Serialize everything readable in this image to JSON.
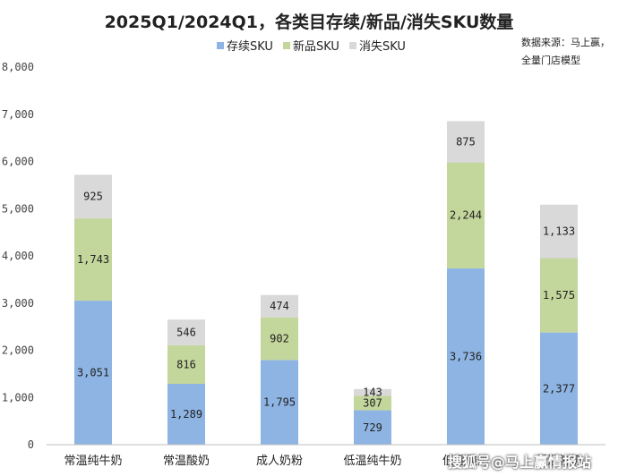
{
  "chart_data": {
    "type": "bar",
    "stacked": true,
    "title": "2025Q1/2024Q1，各类目存续/新品/消失SKU数量",
    "categories": [
      "常温纯牛奶",
      "常温酸奶",
      "成人奶粉",
      "低温纯牛奶",
      "低温酸奶",
      "低温鲜奶"
    ],
    "series": [
      {
        "name": "存续SKU",
        "color": "#8eb4e3",
        "values": [
          3051,
          1289,
          1795,
          729,
          3736,
          2377
        ]
      },
      {
        "name": "新品SKU",
        "color": "#c3d69b",
        "values": [
          1743,
          816,
          902,
          307,
          2244,
          1575
        ]
      },
      {
        "name": "消失SKU",
        "color": "#d9d9d9",
        "values": [
          925,
          546,
          474,
          143,
          875,
          1133
        ]
      }
    ],
    "ylim": [
      0,
      8000
    ],
    "ytick_step": 1000,
    "grid": false,
    "legend_position": "top-center"
  },
  "source_note": {
    "line1": "数据来源：马上赢，",
    "line2": "全量门店模型"
  },
  "watermark": "搜狐号@马上赢情报站"
}
